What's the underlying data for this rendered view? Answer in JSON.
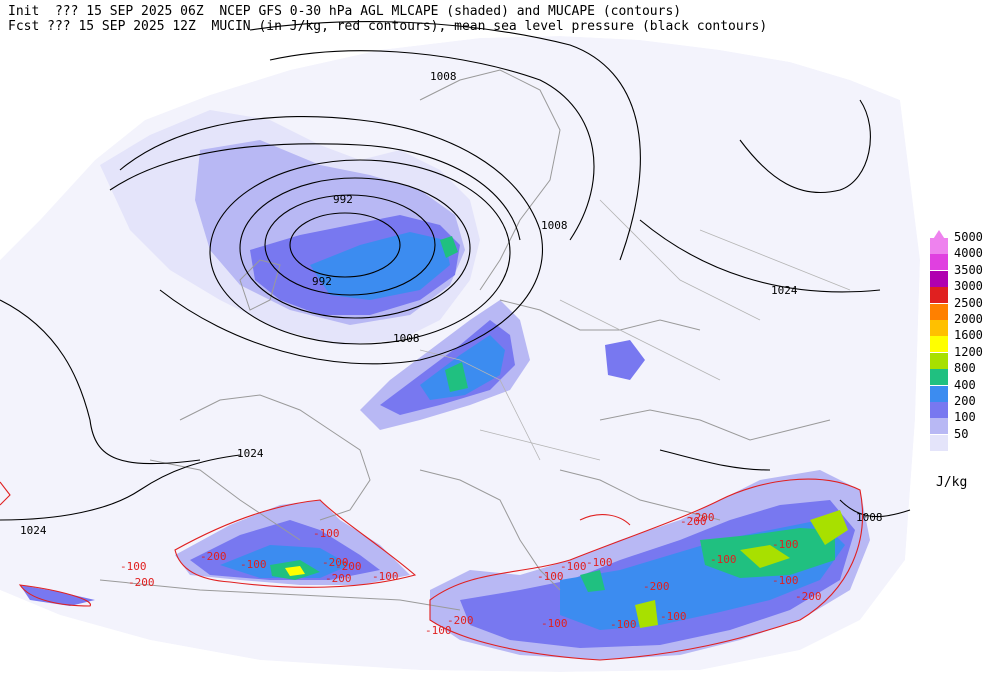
{
  "header": {
    "line1": "Init  ??? 15 SEP 2025 06Z  NCEP GFS 0-30 hPa AGL MLCAPE (shaded) and MUCAPE (contours)",
    "line2": "Fcst ??? 15 SEP 2025 12Z  MUCIN (in J/kg, red contours), mean sea level pressure (black contours)"
  },
  "legend": {
    "levels": [
      {
        "label": "5000",
        "color": "#ee82ee"
      },
      {
        "label": "4000",
        "color": "#e040e0"
      },
      {
        "label": "3500",
        "color": "#b000b0"
      },
      {
        "label": "3000",
        "color": "#e02020"
      },
      {
        "label": "2500",
        "color": "#ff8000"
      },
      {
        "label": "2000",
        "color": "#ffc000"
      },
      {
        "label": "1600",
        "color": "#ffff00"
      },
      {
        "label": "1200",
        "color": "#a8e000"
      },
      {
        "label": "800",
        "color": "#20c080"
      },
      {
        "label": "400",
        "color": "#3c8cf0"
      },
      {
        "label": "200",
        "color": "#7878f0"
      },
      {
        "label": "100",
        "color": "#b8b8f4"
      },
      {
        "label": "50",
        "color": "#e4e4fa"
      }
    ],
    "unit": "J/kg"
  },
  "pressure_labels": {
    "p1008_north": "1008",
    "p992_a": "992",
    "p992_b": "992",
    "p1008_mid": "1008",
    "p1008_scand": "1008",
    "p1024_east": "1024",
    "p1024_west": "1024",
    "p1024_sw": "1024",
    "p1008_se": "1008"
  },
  "cin_labels": {
    "a": "-100",
    "b": "-200",
    "c": "-100",
    "d": "-200",
    "e": "-200",
    "f": "-200",
    "g": "-100",
    "h": "-100",
    "i": "-200",
    "j": "-100",
    "k": "-100",
    "l": "-100",
    "m": "-200",
    "n": "-100",
    "o": "-100",
    "p": "-200",
    "q": "-100",
    "r": "-200",
    "s": "-100",
    "t": "-200",
    "u": "-100",
    "v": "-200",
    "w": "-100",
    "x": "-100"
  }
}
